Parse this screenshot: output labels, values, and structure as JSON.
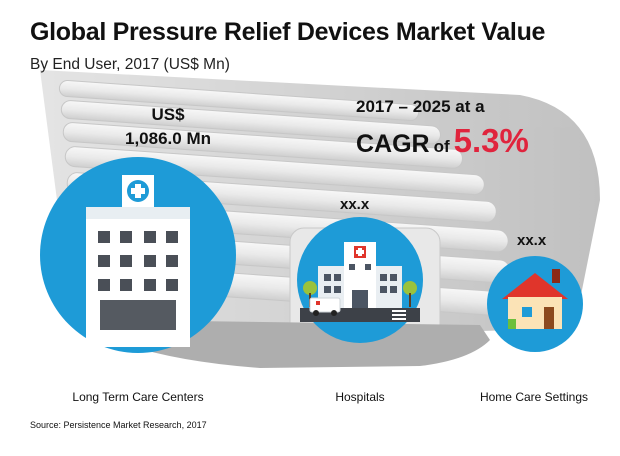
{
  "title": "Global Pressure Relief Devices Market Value",
  "subtitle": "By End User, 2017 (US$ Mn)",
  "total": {
    "currency": "US$",
    "value": "1,086.0 Mn"
  },
  "cagr": {
    "period": "2017 – 2025 at a",
    "word": "CAGR",
    "of": "of",
    "value": "5.3%"
  },
  "source": "Source: Persistence Market Research, 2017",
  "colors": {
    "accent_red": "#e0243d",
    "circle_blue": "#1e9bd7",
    "building_white": "#ffffff",
    "roof_red": "#e0352b"
  },
  "icons": {
    "long_term_care": "care-center-building-icon",
    "hospitals": "hospital-ambulance-icon",
    "home_care": "house-icon"
  },
  "chart_data": {
    "type": "bubble",
    "title": "Global Pressure Relief Devices Market Value",
    "subtitle": "By End User, 2017 (US$ Mn)",
    "total": "US$ 1,086.0 Mn",
    "cagr": "5.3%",
    "categories": [
      "Long Term Care Centers",
      "Hospitals",
      "Home Care Settings"
    ],
    "values_display": [
      "",
      "xx.x",
      "xx.x"
    ],
    "relative_size": [
      1.0,
      0.65,
      0.5
    ]
  }
}
